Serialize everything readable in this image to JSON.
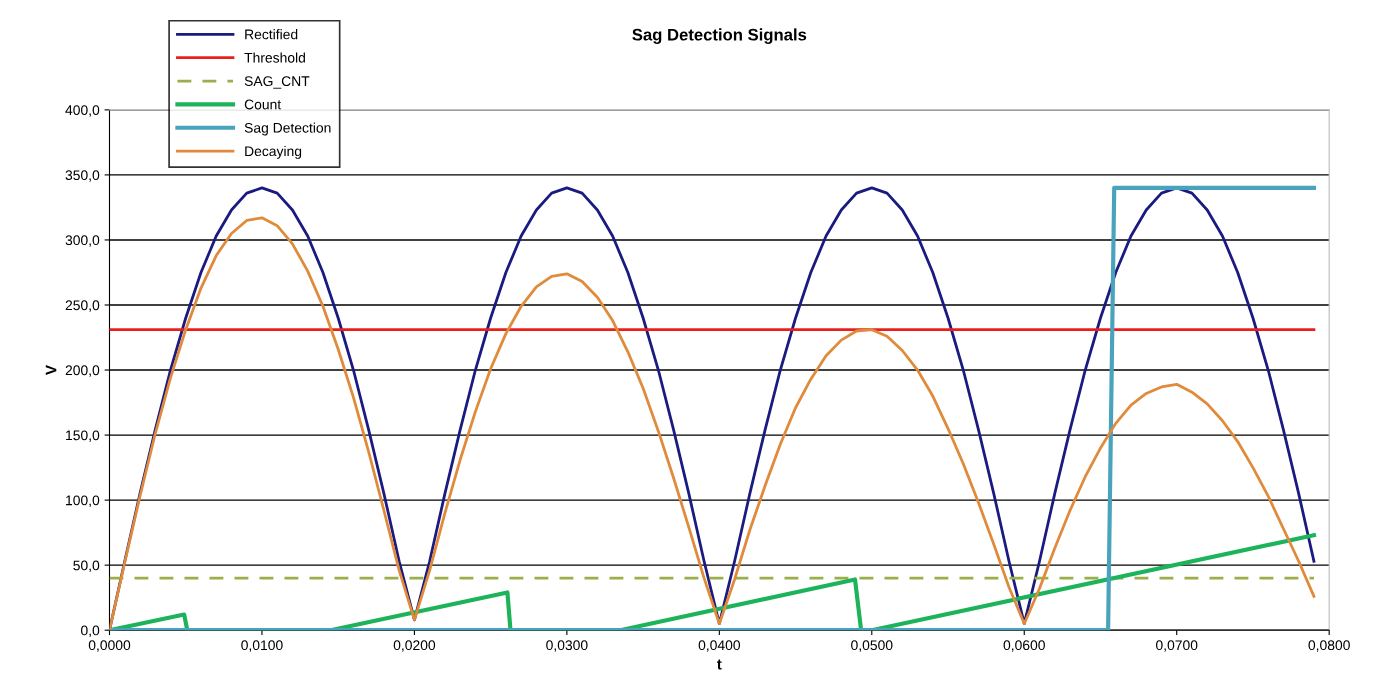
{
  "chart_data": {
    "type": "line",
    "title": "Sag Detection Signals",
    "xlabel": "t",
    "ylabel": "V",
    "x": [
      0,
      0.001,
      0.002,
      0.003,
      0.004,
      0.005,
      0.006,
      0.007,
      0.008,
      0.009,
      0.01,
      0.011,
      0.012,
      0.013,
      0.014,
      0.015,
      0.016,
      0.017,
      0.018,
      0.019,
      0.02,
      0.021,
      0.022,
      0.023,
      0.024,
      0.025,
      0.026,
      0.027,
      0.028,
      0.029,
      0.03,
      0.031,
      0.032,
      0.033,
      0.034,
      0.035,
      0.036,
      0.037,
      0.038,
      0.039,
      0.04,
      0.041,
      0.042,
      0.043,
      0.044,
      0.045,
      0.046,
      0.047,
      0.048,
      0.049,
      0.05,
      0.051,
      0.052,
      0.053,
      0.054,
      0.055,
      0.056,
      0.057,
      0.058,
      0.059,
      0.06,
      0.061,
      0.062,
      0.063,
      0.064,
      0.065,
      0.066,
      0.067,
      0.068,
      0.069,
      0.07,
      0.071,
      0.072,
      0.073,
      0.074,
      0.075,
      0.076,
      0.077,
      0.078,
      0.079
    ],
    "series": [
      {
        "name": "Rectified",
        "color": "#1a1a80",
        "values": [
          0,
          53,
          105,
          154,
          200,
          240,
          275,
          303,
          323,
          336,
          340,
          336,
          323,
          303,
          275,
          240,
          200,
          154,
          105,
          53,
          8,
          53,
          105,
          154,
          200,
          240,
          275,
          303,
          323,
          336,
          340,
          336,
          323,
          303,
          275,
          240,
          200,
          154,
          105,
          53,
          5,
          53,
          105,
          154,
          200,
          240,
          275,
          303,
          323,
          336,
          340,
          336,
          323,
          303,
          275,
          240,
          200,
          154,
          105,
          53,
          5,
          53,
          105,
          154,
          200,
          240,
          275,
          303,
          323,
          336,
          340,
          336,
          323,
          303,
          275,
          240,
          200,
          154,
          105,
          53
        ]
      },
      {
        "name": "Threshold",
        "color": "#e8201c",
        "x": [
          0,
          0.079
        ],
        "values": [
          231,
          231
        ]
      },
      {
        "name": "SAG_CNT",
        "color": "#9aae4a",
        "line_style": "dashed",
        "x": [
          0,
          0.079
        ],
        "values": [
          40,
          40
        ]
      },
      {
        "name": "Count",
        "color": "#1db35a",
        "x": [
          0,
          0.0049,
          0.0051,
          0.0145,
          0.0261,
          0.0263,
          0.0335,
          0.0489,
          0.0493,
          0.05,
          0.079
        ],
        "values": [
          0,
          12,
          0,
          0,
          29,
          0,
          0,
          39,
          0,
          0,
          73
        ]
      },
      {
        "name": "Sag Detection",
        "color": "#4aa3bc",
        "x": [
          0,
          0.0655,
          0.0659,
          0.079
        ],
        "values": [
          0,
          0,
          340,
          340
        ]
      },
      {
        "name": "Decaying",
        "color": "#e08a3c",
        "values": [
          0,
          52,
          103,
          151,
          194,
          231,
          263,
          288,
          305,
          315,
          317,
          311,
          297,
          276,
          249,
          216,
          179,
          137,
          92,
          46,
          8,
          46,
          90,
          131,
          168,
          201,
          228,
          249,
          264,
          272,
          274,
          268,
          256,
          238,
          214,
          186,
          153,
          117,
          79,
          40,
          5,
          39,
          77,
          111,
          143,
          171,
          193,
          211,
          223,
          230,
          231,
          226,
          215,
          200,
          180,
          155,
          128,
          98,
          66,
          33,
          5,
          32,
          63,
          92,
          118,
          140,
          159,
          173,
          182,
          187,
          189,
          183,
          174,
          161,
          145,
          125,
          103,
          78,
          53,
          26
        ]
      }
    ],
    "xlim": [
      0,
      0.08
    ],
    "xticks": [
      {
        "value": 0,
        "label": "0,0000"
      },
      {
        "value": 0.01,
        "label": "0,0100"
      },
      {
        "value": 0.02,
        "label": "0,0200"
      },
      {
        "value": 0.03,
        "label": "0,0300"
      },
      {
        "value": 0.04,
        "label": "0,0400"
      },
      {
        "value": 0.05,
        "label": "0,0500"
      },
      {
        "value": 0.06,
        "label": "0,0600"
      },
      {
        "value": 0.07,
        "label": "0,0700"
      },
      {
        "value": 0.08,
        "label": "0,0800"
      }
    ],
    "ylim": [
      0,
      400
    ],
    "yticks": [
      {
        "value": 0,
        "label": "0,0"
      },
      {
        "value": 50,
        "label": "50,0"
      },
      {
        "value": 100,
        "label": "100,0"
      },
      {
        "value": 150,
        "label": "150,0"
      },
      {
        "value": 200,
        "label": "200,0"
      },
      {
        "value": 250,
        "label": "250,0"
      },
      {
        "value": 300,
        "label": "300,0"
      },
      {
        "value": 350,
        "label": "350,0"
      },
      {
        "value": 400,
        "label": "400,0"
      }
    ],
    "grid": "y",
    "legend": "top left",
    "marker": "none",
    "line_style": "solid"
  }
}
